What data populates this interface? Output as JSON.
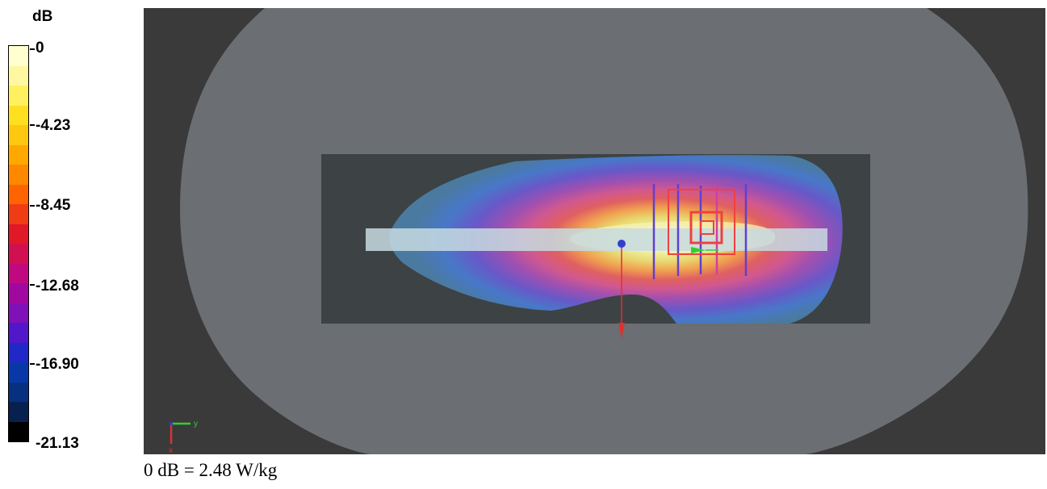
{
  "legend": {
    "unit": "dB",
    "labels": [
      "0",
      "-4.23",
      "-8.45",
      "-12.68",
      "-16.90",
      "-21.13"
    ],
    "band_colors": [
      "#ffffd0",
      "#fff8a0",
      "#fff060",
      "#ffe020",
      "#ffc810",
      "#ffa800",
      "#ff8800",
      "#ff6400",
      "#f03c14",
      "#e01828",
      "#d01050",
      "#c00880",
      "#a008a0",
      "#8010b8",
      "#5018c8",
      "#2028c8",
      "#0838a8",
      "#083080",
      "#082050",
      "#000000"
    ]
  },
  "caption": "0 dB = 2.48 W/kg",
  "axes": {
    "y": "y",
    "x": "x"
  },
  "colors": {
    "background": "#3a3a3a",
    "phantom": "#6b6e72",
    "scan_area": "#3d4245",
    "probe": "#c7dbe0",
    "axis_red": "#e03030",
    "axis_green": "#30d030",
    "axis_blue": "#3040d0"
  }
}
